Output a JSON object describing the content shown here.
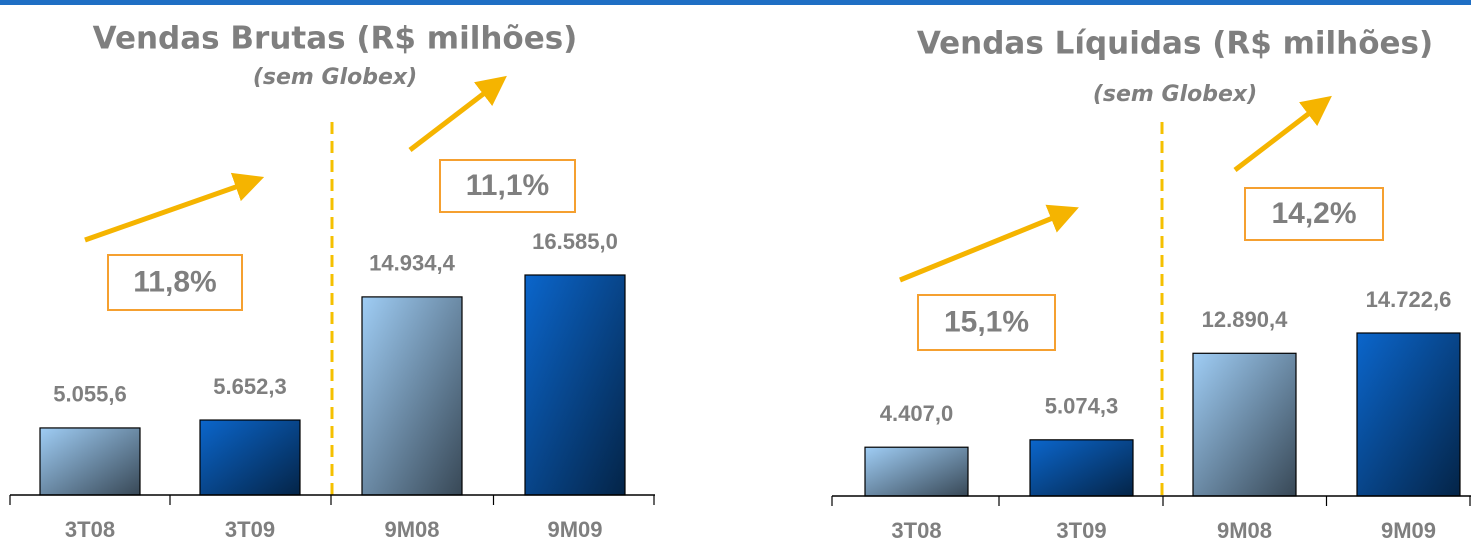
{
  "chart_data": [
    {
      "type": "bar",
      "title": "Vendas Brutas (R$ milhões)",
      "subtitle": "(sem Globex)",
      "categories": [
        "3T08",
        "3T09",
        "9M08",
        "9M09"
      ],
      "values": [
        5055.6,
        5652.3,
        14934.4,
        16585.0
      ],
      "value_labels": [
        "5.055,6",
        "5.652,3",
        "14.934,4",
        "16.585,0"
      ],
      "colors": [
        "#9fcdf5",
        "#0b66cc",
        "#9fcdf5",
        "#0b66cc"
      ],
      "annotations": [
        "11,8%",
        "11,1%"
      ]
    },
    {
      "type": "bar",
      "title": "Vendas Líquidas (R$ milhões)",
      "subtitle": "(sem Globex)",
      "categories": [
        "3T08",
        "3T09",
        "9M08",
        "9M09"
      ],
      "values": [
        4407.0,
        5074.3,
        12890.4,
        14722.6
      ],
      "value_labels": [
        "4.407,0",
        "5.074,3",
        "12.890,4",
        "14.722,6"
      ],
      "colors": [
        "#9fcdf5",
        "#0b66cc",
        "#9fcdf5",
        "#0b66cc"
      ],
      "annotations": [
        "15,1%",
        "14,2%"
      ]
    }
  ]
}
